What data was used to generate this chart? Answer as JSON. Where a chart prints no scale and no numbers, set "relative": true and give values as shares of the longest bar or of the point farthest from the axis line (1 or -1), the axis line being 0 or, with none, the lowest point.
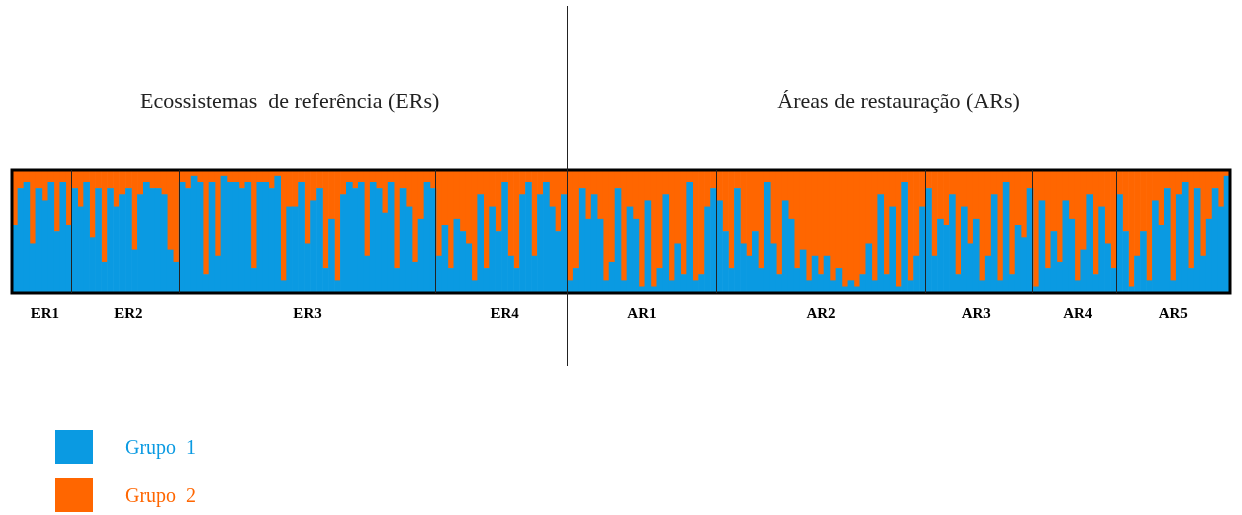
{
  "chart_data": {
    "type": "bar",
    "stacked": true,
    "relative": true,
    "legend": "bottom left",
    "annotations": [
      "Ecossistemas  de referência (ERs)",
      "Áreas de restauração (ARs)"
    ],
    "categories": [
      null,
      null,
      null,
      null,
      null,
      "ER1",
      null,
      null,
      null,
      null,
      null,
      null,
      null,
      null,
      null,
      null,
      null,
      null,
      null,
      "ER2",
      null,
      null,
      null,
      null,
      null,
      null,
      null,
      null,
      null,
      null,
      null,
      null,
      null,
      null,
      null,
      null,
      null,
      null,
      null,
      null,
      null,
      null,
      null,
      null,
      null,
      null,
      null,
      null,
      null,
      "ER3",
      null,
      null,
      null,
      null,
      null,
      null,
      null,
      null,
      null,
      null,
      null,
      null,
      null,
      null,
      null,
      null,
      null,
      null,
      null,
      null,
      null,
      null,
      null,
      null,
      null,
      null,
      null,
      null,
      null,
      null,
      null,
      null,
      "ER4",
      null,
      null,
      null,
      null,
      null,
      null,
      null,
      null,
      null,
      null,
      null,
      null,
      null,
      null,
      null,
      null,
      null,
      null,
      null,
      null,
      null,
      null,
      "AR1",
      null,
      null,
      null,
      null,
      null,
      null,
      null,
      null,
      null,
      null,
      null,
      null,
      null,
      null,
      null,
      null,
      null,
      null,
      null,
      null,
      null,
      null,
      null,
      null,
      null,
      null,
      null,
      null,
      null,
      "AR2",
      null,
      null,
      null,
      null,
      null,
      null,
      null,
      null,
      null,
      null,
      null,
      null,
      null,
      null,
      null,
      null,
      null,
      null,
      null,
      null,
      null,
      null,
      null,
      null,
      null,
      "AR3",
      null,
      null,
      null,
      null,
      null,
      null,
      null,
      null,
      null,
      null,
      null,
      null,
      null,
      null,
      null,
      null,
      "AR4",
      null,
      null,
      null,
      null,
      null,
      null,
      null,
      null,
      null,
      null,
      null,
      null,
      null,
      null,
      null,
      "AR5",
      null,
      null,
      null,
      null,
      null,
      null,
      null,
      null,
      null
    ],
    "series": [
      {
        "name": "Grupo  1",
        "color": "#0a9ae2",
        "values": [
          0.55,
          0.85,
          0.9,
          0.4,
          0.85,
          0.75,
          0.9,
          0.5,
          0.9,
          0.55,
          0.85,
          0.7,
          0.9,
          0.45,
          0.85,
          0.25,
          0.85,
          0.7,
          0.8,
          0.85,
          0.35,
          0.8,
          0.9,
          0.85,
          0.85,
          0.8,
          0.35,
          0.25,
          0.9,
          0.85,
          0.95,
          0.9,
          0.15,
          0.9,
          0.3,
          0.95,
          0.9,
          0.9,
          0.85,
          0.9,
          0.2,
          0.9,
          0.9,
          0.85,
          0.95,
          0.1,
          0.7,
          0.7,
          0.9,
          0.4,
          0.75,
          0.85,
          0.2,
          0.6,
          0.1,
          0.8,
          0.9,
          0.85,
          0.9,
          0.3,
          0.9,
          0.85,
          0.65,
          0.9,
          0.2,
          0.85,
          0.7,
          0.25,
          0.6,
          0.9,
          0.85,
          0.3,
          0.55,
          0.2,
          0.6,
          0.5,
          0.4,
          0.1,
          0.8,
          0.2,
          0.7,
          0.5,
          0.9,
          0.3,
          0.2,
          0.8,
          0.9,
          0.3,
          0.8,
          0.9,
          0.7,
          0.5,
          0.8,
          0.1,
          0.2,
          0.85,
          0.6,
          0.8,
          0.6,
          0.1,
          0.25,
          0.85,
          0.1,
          0.7,
          0.6,
          0.05,
          0.75,
          0.05,
          0.2,
          0.8,
          0.1,
          0.4,
          0.15,
          0.9,
          0.1,
          0.15,
          0.7,
          0.85,
          0.75,
          0.5,
          0.2,
          0.85,
          0.4,
          0.3,
          0.5,
          0.2,
          0.9,
          0.4,
          0.15,
          0.75,
          0.6,
          0.2,
          0.35,
          0.1,
          0.3,
          0.15,
          0.3,
          0.1,
          0.2,
          0.05,
          0.1,
          0.05,
          0.15,
          0.4,
          0.1,
          0.8,
          0.15,
          0.7,
          0.05,
          0.9,
          0.1,
          0.3,
          0.7,
          0.85,
          0.3,
          0.6,
          0.55,
          0.8,
          0.15,
          0.7,
          0.4,
          0.6,
          0.1,
          0.3,
          0.8,
          0.1,
          0.9,
          0.15,
          0.55,
          0.45,
          0.85,
          0.05,
          0.75,
          0.2,
          0.5,
          0.25,
          0.75,
          0.6,
          0.1,
          0.35,
          0.8,
          0.15,
          0.7,
          0.4,
          0.2,
          0.8,
          0.5,
          0.05,
          0.3,
          0.5,
          0.1,
          0.75,
          0.55,
          0.85,
          0.1,
          0.8,
          0.9,
          0.2,
          0.85,
          0.3,
          0.6,
          0.85,
          0.7,
          0.95
        ]
      },
      {
        "name": "Grupo  2",
        "color": "#ff6600",
        "values": [
          0.45,
          0.15,
          0.1,
          0.6,
          0.15,
          0.25,
          0.1,
          0.5,
          0.1,
          0.45,
          0.15,
          0.3,
          0.1,
          0.55,
          0.15,
          0.75,
          0.15,
          0.3,
          0.2,
          0.15,
          0.65,
          0.2,
          0.1,
          0.15,
          0.15,
          0.2,
          0.65,
          0.75,
          0.1,
          0.15,
          0.05,
          0.1,
          0.85,
          0.1,
          0.7,
          0.05,
          0.1,
          0.1,
          0.15,
          0.1,
          0.8,
          0.1,
          0.1,
          0.15,
          0.05,
          0.9,
          0.3,
          0.3,
          0.1,
          0.6,
          0.25,
          0.15,
          0.8,
          0.4,
          0.9,
          0.2,
          0.1,
          0.15,
          0.1,
          0.7,
          0.1,
          0.15,
          0.35,
          0.1,
          0.8,
          0.15,
          0.3,
          0.75,
          0.4,
          0.1,
          0.15,
          0.7,
          0.45,
          0.8,
          0.4,
          0.5,
          0.6,
          0.9,
          0.2,
          0.8,
          0.3,
          0.5,
          0.1,
          0.7,
          0.8,
          0.2,
          0.1,
          0.7,
          0.2,
          0.1,
          0.3,
          0.5,
          0.2,
          0.9,
          0.8,
          0.15,
          0.4,
          0.2,
          0.4,
          0.9,
          0.75,
          0.15,
          0.9,
          0.3,
          0.4,
          0.95,
          0.25,
          0.95,
          0.8,
          0.2,
          0.9,
          0.6,
          0.85,
          0.1,
          0.9,
          0.85,
          0.3,
          0.15,
          0.25,
          0.5,
          0.8,
          0.15,
          0.6,
          0.7,
          0.5,
          0.8,
          0.1,
          0.6,
          0.85,
          0.25,
          0.4,
          0.8,
          0.65,
          0.9,
          0.7,
          0.85,
          0.7,
          0.9,
          0.8,
          0.95,
          0.9,
          0.95,
          0.85,
          0.6,
          0.9,
          0.2,
          0.85,
          0.3,
          0.95,
          0.1,
          0.9,
          0.7,
          0.3,
          0.15,
          0.7,
          0.4,
          0.45,
          0.2,
          0.85,
          0.3,
          0.6,
          0.4,
          0.9,
          0.7,
          0.2,
          0.9,
          0.1,
          0.85,
          0.45,
          0.55,
          0.15,
          0.95,
          0.25,
          0.8,
          0.5,
          0.75,
          0.25,
          0.4,
          0.9,
          0.65,
          0.2,
          0.85,
          0.3,
          0.6,
          0.8,
          0.2,
          0.5,
          0.95,
          0.7,
          0.5,
          0.9,
          0.25,
          0.45,
          0.15,
          0.9,
          0.2,
          0.1,
          0.8,
          0.15,
          0.7,
          0.4,
          0.15,
          0.3,
          0.05
        ]
      }
    ]
  }
}
